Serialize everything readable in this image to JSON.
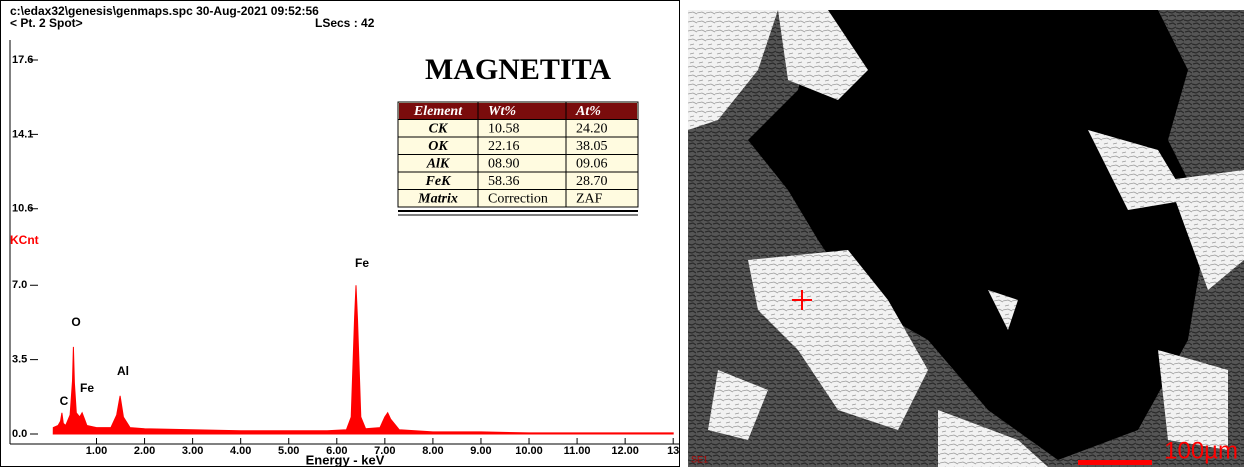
{
  "header": {
    "file": "c:\\edax32\\genesis\\genmaps.spc  30-Aug-2021 09:52:56",
    "spot": "< Pt.  2 Spot>",
    "lsecs": "LSecs :  42"
  },
  "chart_data": {
    "type": "area",
    "title": "MAGNETITA",
    "y_label": "KCnt",
    "x_label": "Energy - keV",
    "color": "#ff0000",
    "x": [
      0.1,
      0.2,
      0.25,
      0.28,
      0.31,
      0.36,
      0.45,
      0.5,
      0.52,
      0.54,
      0.58,
      0.65,
      0.7,
      0.75,
      0.8,
      1.0,
      1.3,
      1.42,
      1.49,
      1.56,
      1.7,
      2.0,
      3.0,
      4.0,
      5.0,
      5.8,
      6.2,
      6.3,
      6.37,
      6.4,
      6.43,
      6.5,
      6.6,
      6.9,
      7.0,
      7.06,
      7.12,
      7.3,
      8.0,
      9.0,
      10.0,
      11.0,
      12.0,
      13.0
    ],
    "values": [
      0.3,
      0.4,
      0.6,
      1.0,
      0.5,
      0.4,
      0.9,
      2.5,
      4.1,
      2.4,
      1.0,
      0.8,
      1.0,
      0.7,
      0.4,
      0.3,
      0.3,
      0.9,
      1.8,
      0.8,
      0.3,
      0.25,
      0.2,
      0.15,
      0.15,
      0.15,
      0.2,
      0.8,
      5.5,
      7.0,
      5.4,
      0.8,
      0.25,
      0.3,
      0.8,
      1.0,
      0.7,
      0.2,
      0.1,
      0.1,
      0.05,
      0.05,
      0.05,
      0.05
    ],
    "peak_labels": [
      "C",
      "O",
      "Fe",
      "Al",
      "Fe"
    ],
    "xlim": [
      -0.8,
      13.1
    ],
    "ylim": [
      0,
      17.6
    ],
    "xticks": [
      {
        "value": 1,
        "label": "1.00"
      },
      {
        "value": 2,
        "label": "2.00"
      },
      {
        "value": 3,
        "label": "3.00"
      },
      {
        "value": 4,
        "label": "4.00"
      },
      {
        "value": 5,
        "label": "5.00"
      },
      {
        "value": 6,
        "label": "6.00"
      },
      {
        "value": 7,
        "label": "7.00"
      },
      {
        "value": 8,
        "label": "8.00"
      },
      {
        "value": 9,
        "label": "9.00"
      },
      {
        "value": 10,
        "label": "10.00"
      },
      {
        "value": 11,
        "label": "11.00"
      },
      {
        "value": 12,
        "label": "12.00"
      },
      13
    ],
    "yticks": [
      {
        "value": 0,
        "label": "0.0"
      },
      3.5,
      {
        "value": 7,
        "label": "7.0"
      },
      10.6,
      14.1,
      17.6
    ]
  },
  "table": {
    "header": [
      "Element",
      "Wt%",
      "At%"
    ],
    "rows": [
      [
        "CK",
        "10.58",
        "24.20"
      ],
      [
        "OK",
        "22.16",
        "38.05"
      ],
      [
        "AlK",
        "08.90",
        "09.06"
      ],
      [
        "FeK",
        "58.36",
        "28.70"
      ],
      [
        "Matrix",
        "Correction",
        "ZAF"
      ]
    ]
  },
  "image": {
    "detector": "SE1",
    "scale": "100µm"
  }
}
